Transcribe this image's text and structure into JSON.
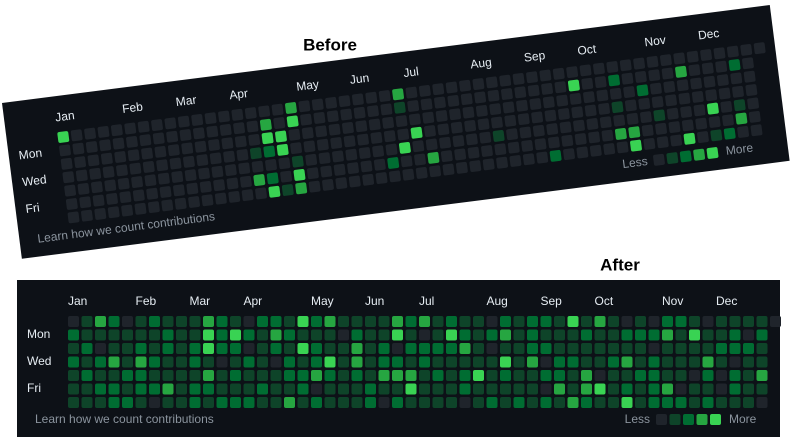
{
  "before": {
    "title": "Before",
    "months": [
      "Jan",
      "Feb",
      "Mar",
      "Apr",
      "May",
      "Jun",
      "Jul",
      "Aug",
      "Sep",
      "Oct",
      "Nov",
      "Dec"
    ],
    "days": [
      "Mon",
      "Wed",
      "Fri"
    ],
    "footer": "Learn how we count contributions",
    "legend": {
      "less": "Less",
      "more": "More"
    }
  },
  "after": {
    "title": "After",
    "months": [
      "Jan",
      "Feb",
      "Mar",
      "Apr",
      "May",
      "Jun",
      "Jul",
      "Aug",
      "Sep",
      "Oct",
      "Nov",
      "Dec"
    ],
    "days": [
      "Mon",
      "Wed",
      "Fri"
    ],
    "footer": "Learn how we count contributions",
    "legend": {
      "less": "Less",
      "more": "More"
    }
  }
}
